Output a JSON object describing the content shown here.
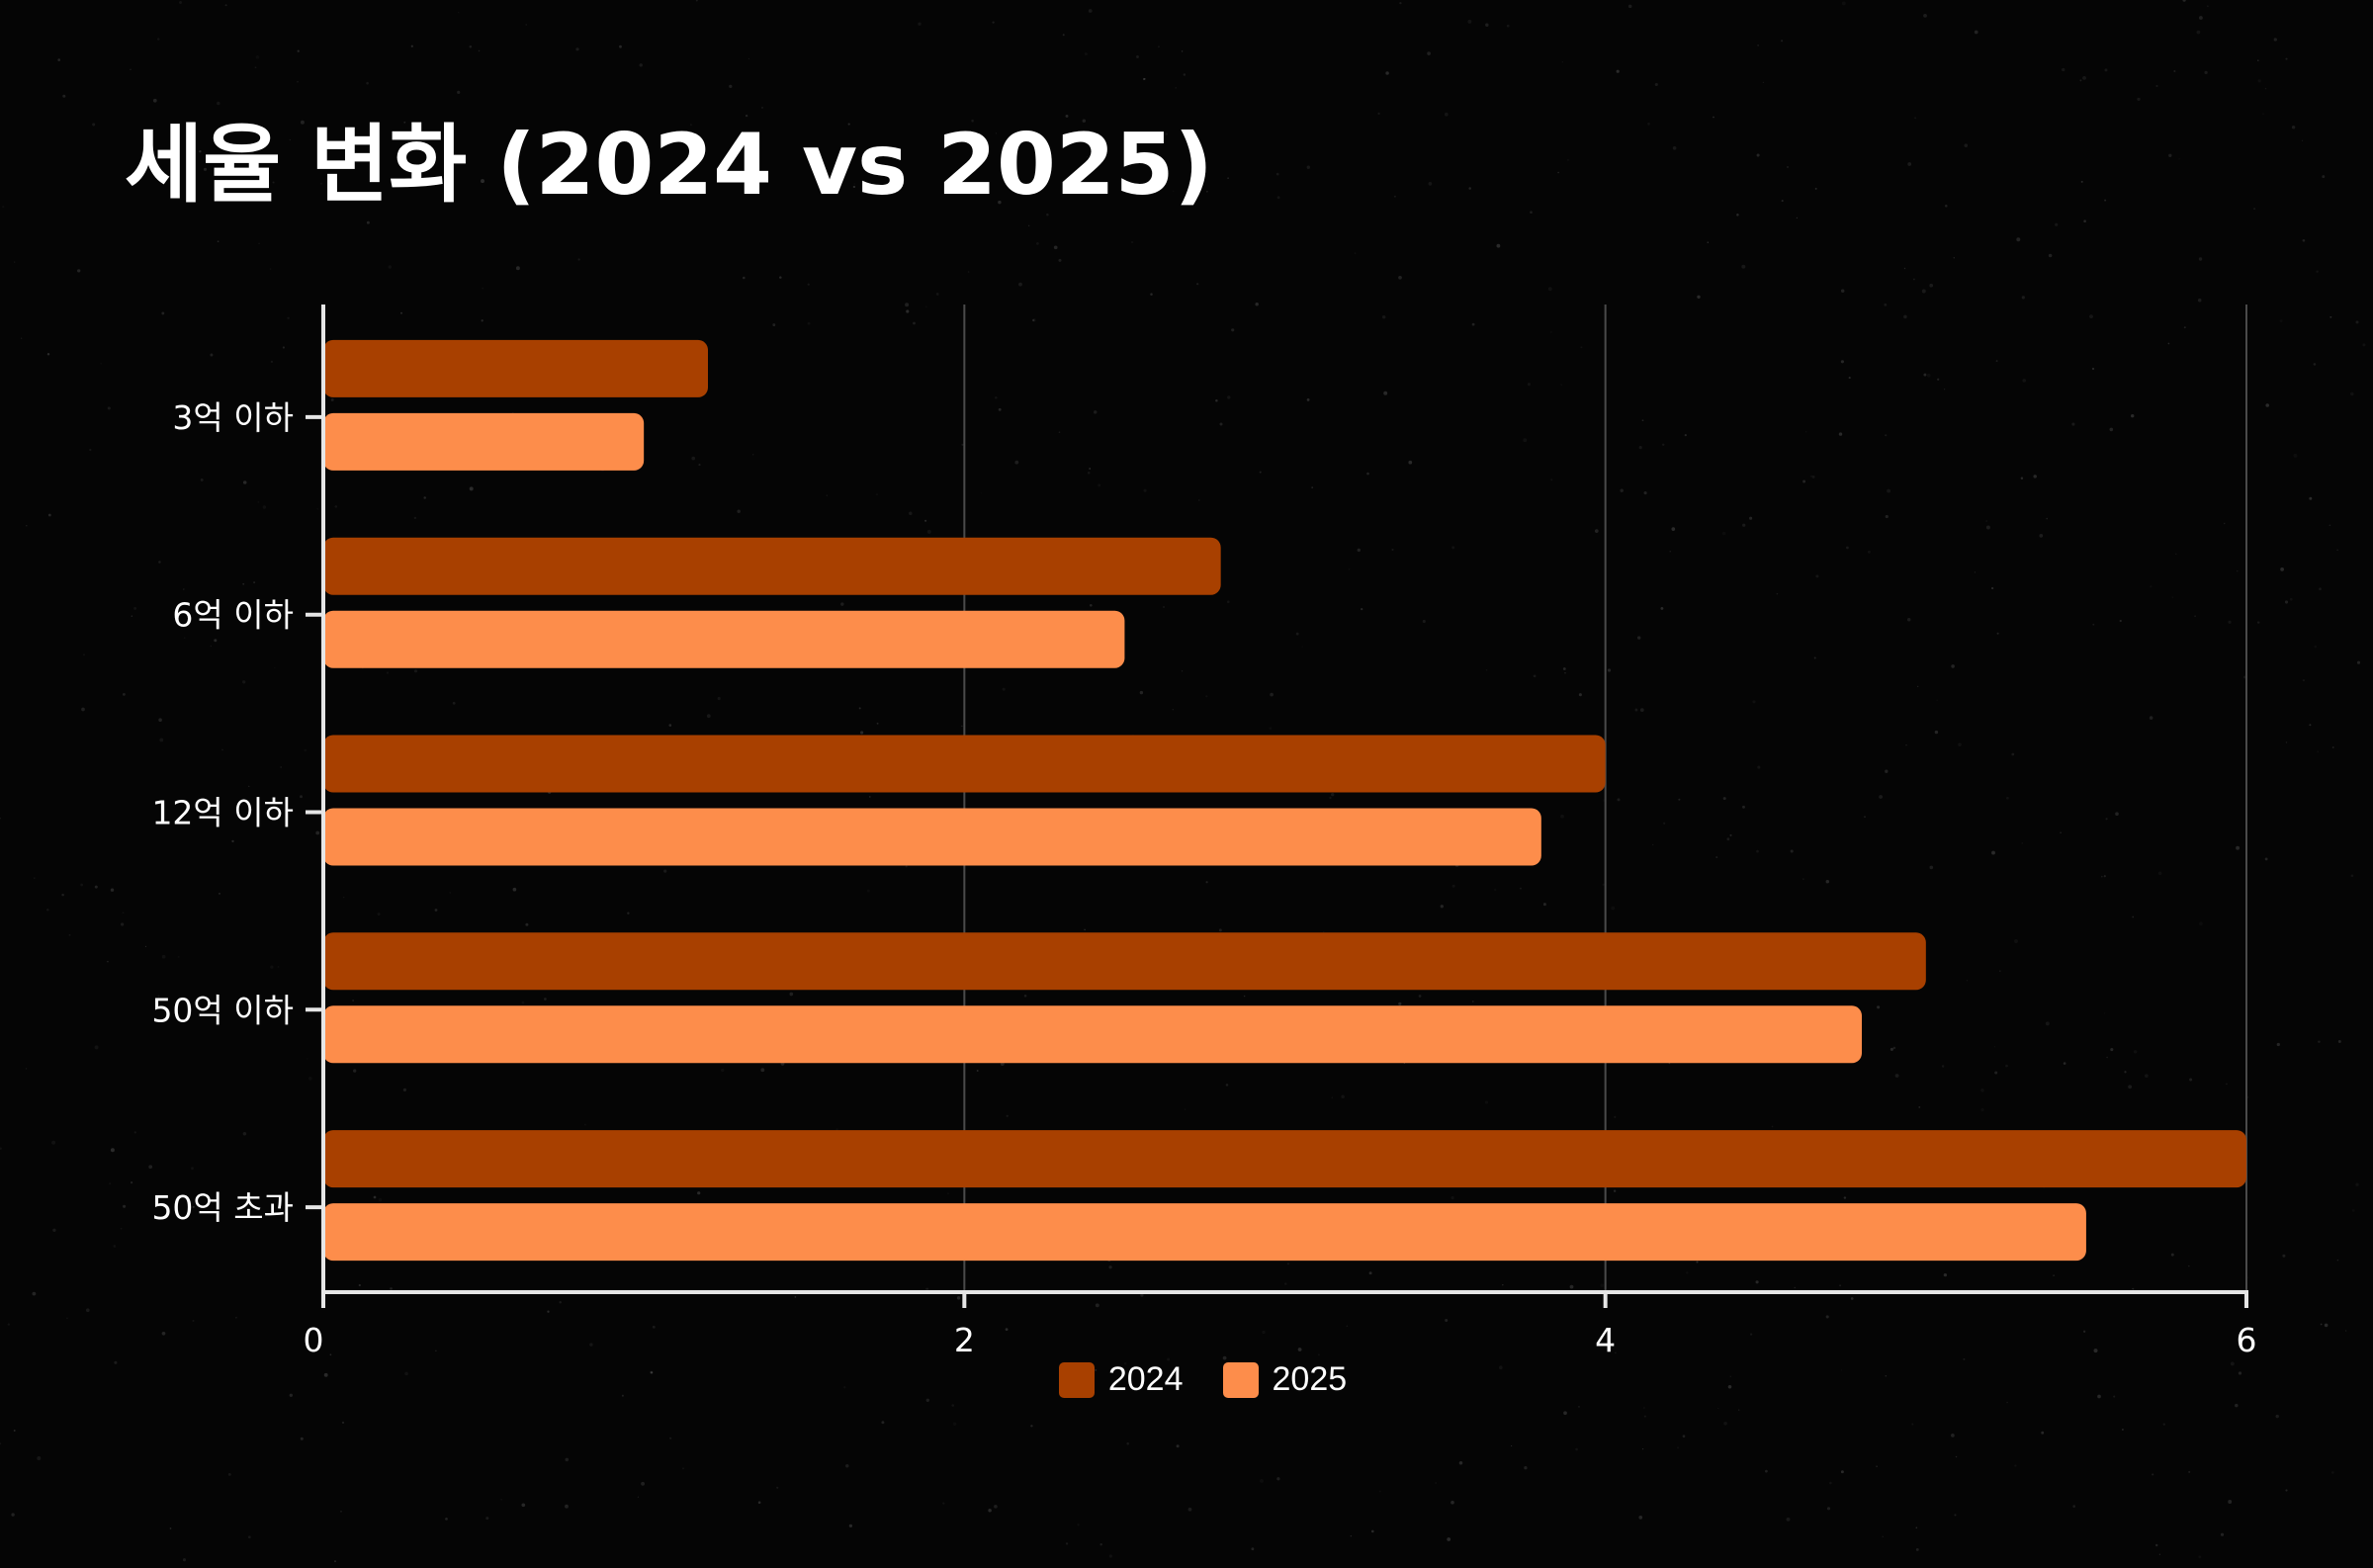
{
  "title": "세율 변화 (2024 vs 2025)",
  "colors": {
    "background": "#050505",
    "series_2024": "#a84000",
    "series_2025": "#fd8d4b",
    "axis": "#e6e6e6",
    "grid": "#4a4a4a"
  },
  "chart_data": {
    "type": "bar",
    "orientation": "horizontal",
    "title": "세율 변화 (2024 vs 2025)",
    "categories": [
      "3억 이하",
      "6억 이하",
      "12억 이하",
      "50억 이하",
      "50억 초과"
    ],
    "series": [
      {
        "name": "2024",
        "color": "#a84000",
        "values": [
          1.2,
          2.8,
          4.0,
          5.0,
          6.0
        ]
      },
      {
        "name": "2025",
        "color": "#fd8d4b",
        "values": [
          1.0,
          2.5,
          3.8,
          4.8,
          5.5
        ]
      }
    ],
    "xlim": [
      0,
      6
    ],
    "xticks": [
      "0",
      "2",
      "4",
      "6"
    ],
    "xlabel": "",
    "ylabel": "",
    "grid": true,
    "legend": "bottom"
  }
}
